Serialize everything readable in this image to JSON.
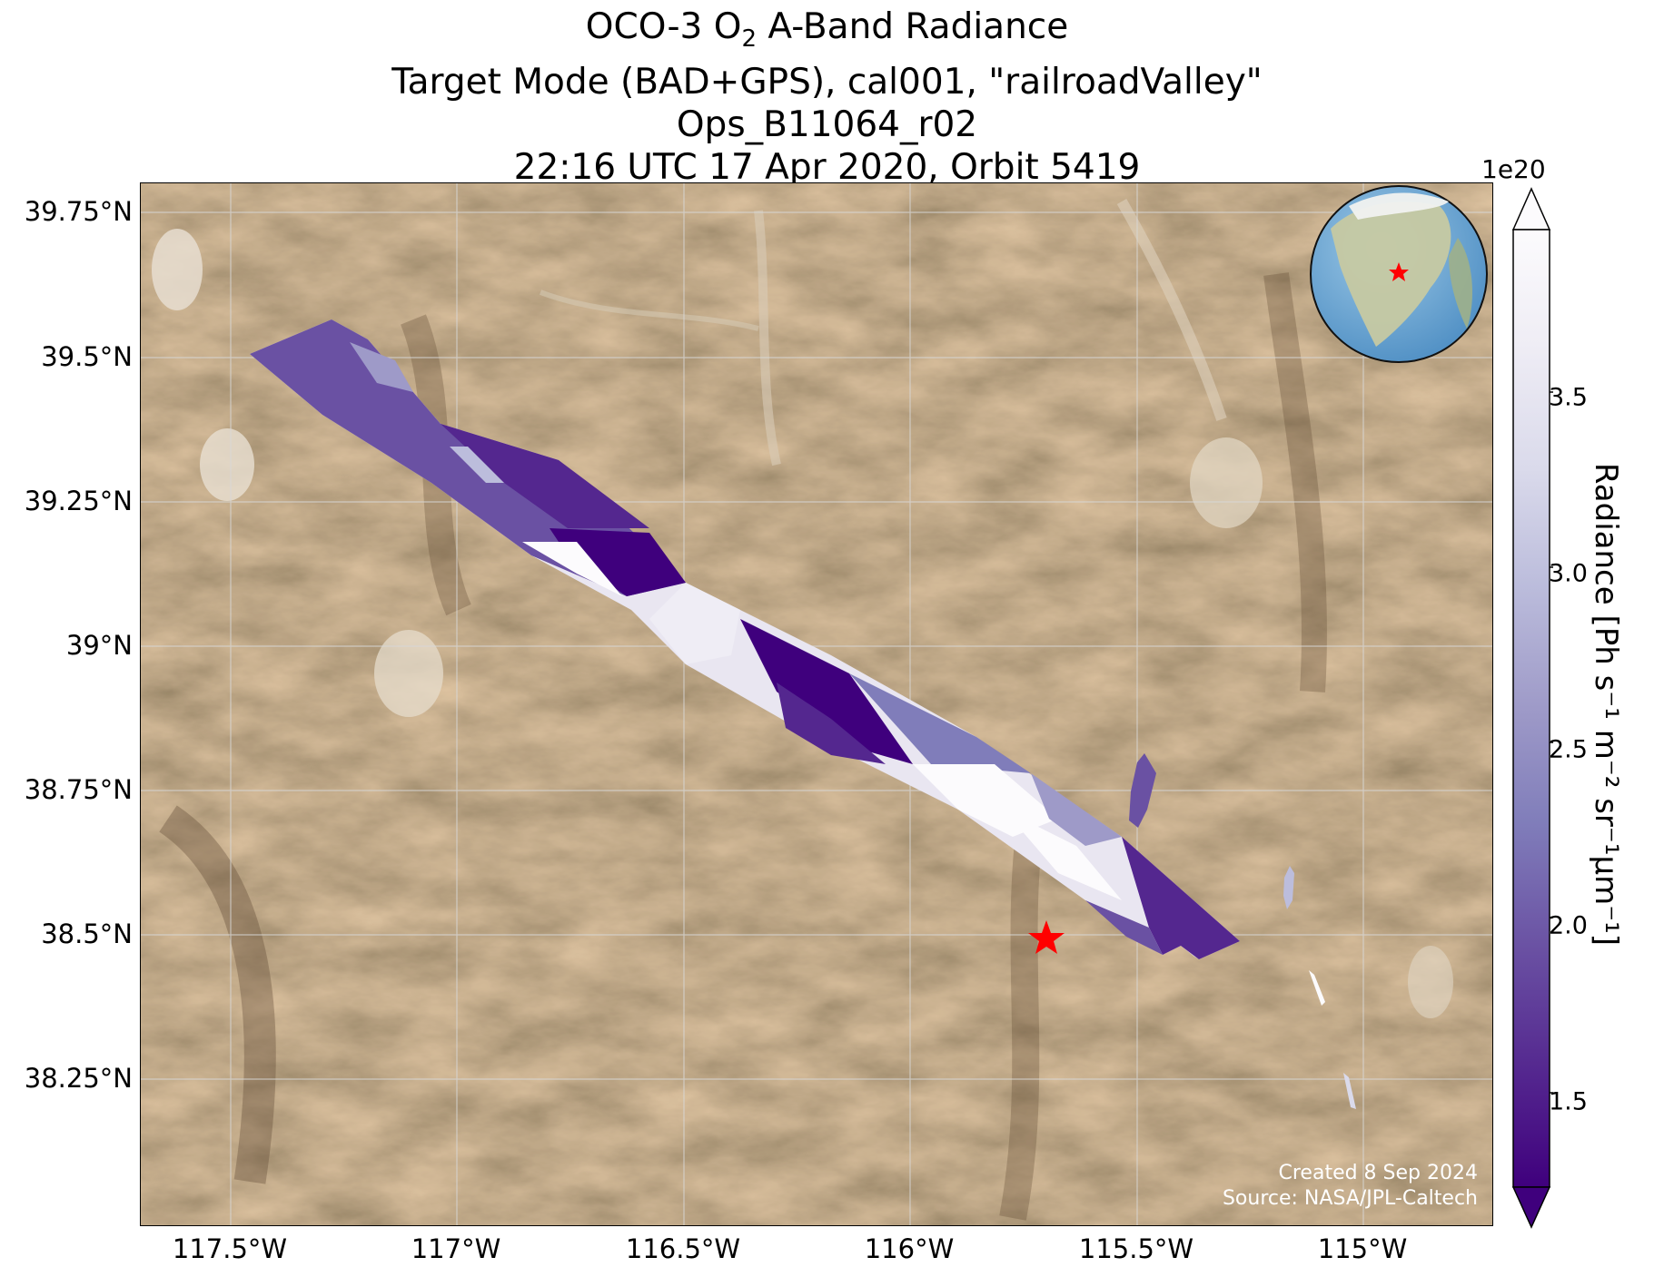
{
  "title": {
    "line1_prefix": "OCO-3 O",
    "line1_sub": "2",
    "line1_suffix": " A-Band Radiance",
    "line2": "Target Mode (BAD+GPS), cal001, \"railroadValley\"",
    "line3": "Ops_B11064_r02",
    "line4": "22:16 UTC 17 Apr 2020, Orbit 5419"
  },
  "map": {
    "lat_ticks": [
      "39.75°N",
      "39.5°N",
      "39.25°N",
      "39°N",
      "38.75°N",
      "38.5°N",
      "38.25°N"
    ],
    "lon_ticks": [
      "117.5°W",
      "117°W",
      "116.5°W",
      "116°W",
      "115.5°W",
      "115°W"
    ],
    "target_marker_color": "#ff0000",
    "globe_marker_color": "#ff0000"
  },
  "colorbar": {
    "exponent": "1e20",
    "ticks": [
      "1.5",
      "2.0",
      "2.5",
      "3.0",
      "3.5"
    ],
    "label": "Radiance [Ph s⁻¹ m⁻² sr⁻¹μm⁻¹]",
    "colormap": [
      "#3f007d",
      "#54278f",
      "#6a51a3",
      "#807dba",
      "#9e9ac8",
      "#bcbddc",
      "#dadaeb",
      "#efedf5",
      "#fcfbfd"
    ]
  },
  "credits": {
    "line1": "Created 8 Sep 2024",
    "line2": "Source: NASA/JPL-Caltech"
  }
}
